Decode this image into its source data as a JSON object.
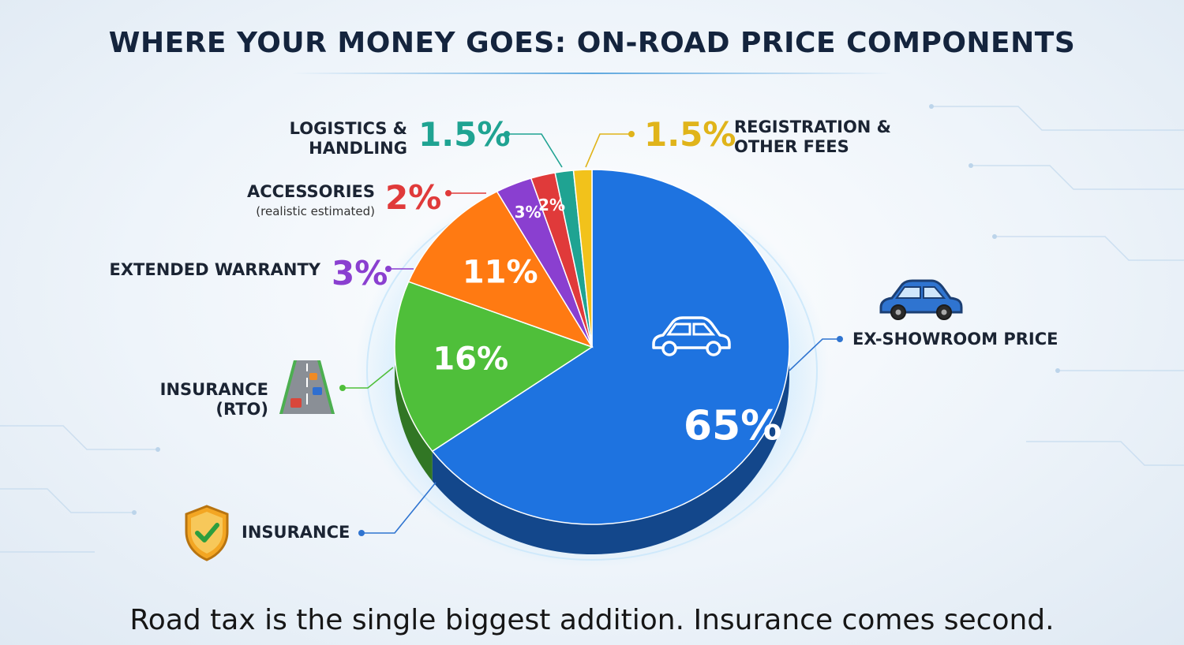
{
  "title": "WHERE  YOUR MONEY GOES: ON-ROAD PRICE COMPONENTS",
  "footer": "Road tax is the single biggest addition. Insurance comes second.",
  "colors": {
    "ex_showroom": "#1e73e0",
    "rto": "#4fbf3a",
    "insurance": "#ff7a12",
    "warranty": "#8a3fd0",
    "accessories": "#e03a3a",
    "logistics": "#1fa392",
    "registration": "#f2c21b"
  },
  "callouts": {
    "logistics_label": "LOGISTICS &\nHANDLING",
    "logistics_pct": "1.5%",
    "registration_pct": "1.5%",
    "registration_label": "REGISTRATION &\nOTHER FEES",
    "accessories_label": "ACCESSORIES",
    "accessories_sub": "(realistic estimated)",
    "accessories_pct": "2%",
    "warranty_label": "EXTENDED WARRANTY",
    "warranty_pct": "3%",
    "rto_label": "INSURANCE\n(RTO)",
    "insurance_label": "INSURANCE",
    "ex_showroom_label": "EX-SHOWROOM PRICE"
  },
  "icons": {
    "road": "road-icon",
    "shield": "shield-check-icon",
    "car": "car-icon"
  },
  "chart_data": {
    "type": "pie",
    "title": "WHERE  YOUR MONEY GOES: ON-ROAD PRICE COMPONENTS",
    "slices": [
      {
        "label": "EX-SHOWROOM PRICE",
        "value": 65,
        "text": "65%",
        "color": "#1e73e0"
      },
      {
        "label": "INSURANCE (RTO)",
        "value": 16,
        "text": "16%",
        "color": "#4fbf3a"
      },
      {
        "label": "INSURANCE",
        "value": 11,
        "text": "11%",
        "color": "#ff7a12"
      },
      {
        "label": "EXTENDED WARRANTY",
        "value": 3,
        "text": "3%",
        "color": "#8a3fd0"
      },
      {
        "label": "ACCESSORIES (realistic estimated)",
        "value": 2,
        "text": "2%",
        "color": "#e03a3a"
      },
      {
        "label": "LOGISTICS & HANDLING",
        "value": 1.5,
        "text": "",
        "color": "#1fa392"
      },
      {
        "label": "REGISTRATION & OTHER FEES",
        "value": 1.5,
        "text": "",
        "color": "#f2c21b"
      }
    ]
  }
}
